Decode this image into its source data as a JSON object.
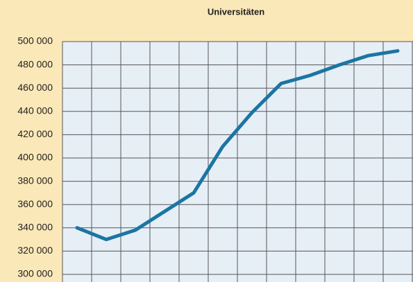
{
  "chart_data": {
    "type": "line",
    "title": "Universitäten",
    "categories": [
      null,
      null,
      null,
      null,
      null,
      null,
      null,
      null,
      null,
      null,
      null,
      null
    ],
    "series": [
      {
        "name": null,
        "color": "#1b75a3",
        "values": [
          340000,
          330000,
          338000,
          354000,
          370000,
          410000,
          439000,
          464000,
          471000,
          480000,
          488000,
          492000
        ]
      }
    ],
    "ylim": [
      300000,
      500000
    ],
    "yticks": [
      {
        "value": 300000,
        "label": "300 000"
      },
      {
        "value": 320000,
        "label": "320 000"
      },
      {
        "value": 340000,
        "label": "340 000"
      },
      {
        "value": 360000,
        "label": "360 000"
      },
      {
        "value": 380000,
        "label": "380 000"
      },
      {
        "value": 400000,
        "label": "400 000"
      },
      {
        "value": 420000,
        "label": "420 000"
      },
      {
        "value": 440000,
        "label": "440 000"
      },
      {
        "value": 460000,
        "label": "460 000"
      },
      {
        "value": 480000,
        "label": "480 000"
      },
      {
        "value": 500000,
        "label": "500 000"
      }
    ],
    "grid": true
  }
}
